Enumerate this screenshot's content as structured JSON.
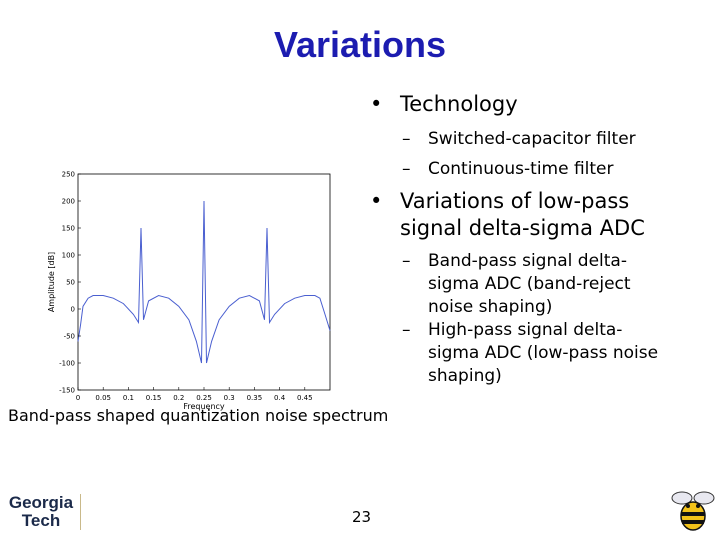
{
  "slide": {
    "title": "Variations",
    "page_number": "23",
    "caption": "Band-pass shaped quantization noise spectrum"
  },
  "bullets": {
    "technology": "Technology",
    "switched_cap": "Switched-capacitor filter",
    "continuous_time": "Continuous-time filter",
    "variations_line1": "Variations of low-pass",
    "variations_line2": "signal delta-sigma ADC",
    "bandpass_line1": "Band-pass signal delta-",
    "bandpass_line2": "sigma ADC (band-reject",
    "bandpass_line3": "noise shaping)",
    "highpass_line1": "High-pass signal delta-",
    "highpass_line2": "sigma ADC (low-pass noise",
    "highpass_line3": "shaping)"
  },
  "logo": {
    "line1": "Georgia",
    "line2": "Tech"
  },
  "icons": {
    "bullet": "bullet-dot-icon",
    "dash": "dash-icon",
    "mascot": "yellow-jacket-bee-icon"
  },
  "chart_data": {
    "type": "line",
    "xlabel": "Frequency",
    "ylabel": "Amplitude [dB]",
    "xlim": [
      0,
      0.5
    ],
    "ylim": [
      -150,
      250
    ],
    "xticks": [
      "0",
      "0.05",
      "0.1",
      "0.15",
      "0.2",
      "0.25",
      "0.3",
      "0.35",
      "0.4",
      "0.45"
    ],
    "yticks": [
      "250",
      "200",
      "150",
      "100",
      "50",
      "0",
      "-50",
      "-100",
      "-150"
    ],
    "grid": false,
    "color": "#4a5fd0",
    "series": [
      {
        "x": [
          0.0,
          0.005,
          0.01,
          0.02,
          0.03,
          0.05,
          0.07,
          0.09,
          0.11,
          0.12,
          0.125,
          0.13,
          0.14,
          0.16,
          0.18,
          0.2,
          0.22,
          0.235,
          0.245,
          0.25,
          0.255,
          0.265,
          0.28,
          0.3,
          0.32,
          0.34,
          0.36,
          0.37,
          0.375,
          0.38,
          0.39,
          0.41,
          0.43,
          0.45,
          0.47,
          0.48,
          0.49,
          0.5
        ],
        "y": [
          -60,
          -30,
          5,
          20,
          25,
          25,
          20,
          10,
          -10,
          -25,
          150,
          -20,
          15,
          25,
          20,
          5,
          -20,
          -60,
          -100,
          200,
          -100,
          -60,
          -20,
          5,
          20,
          25,
          15,
          -20,
          150,
          -25,
          -10,
          10,
          20,
          25,
          25,
          20,
          -10,
          -40
        ]
      }
    ]
  }
}
